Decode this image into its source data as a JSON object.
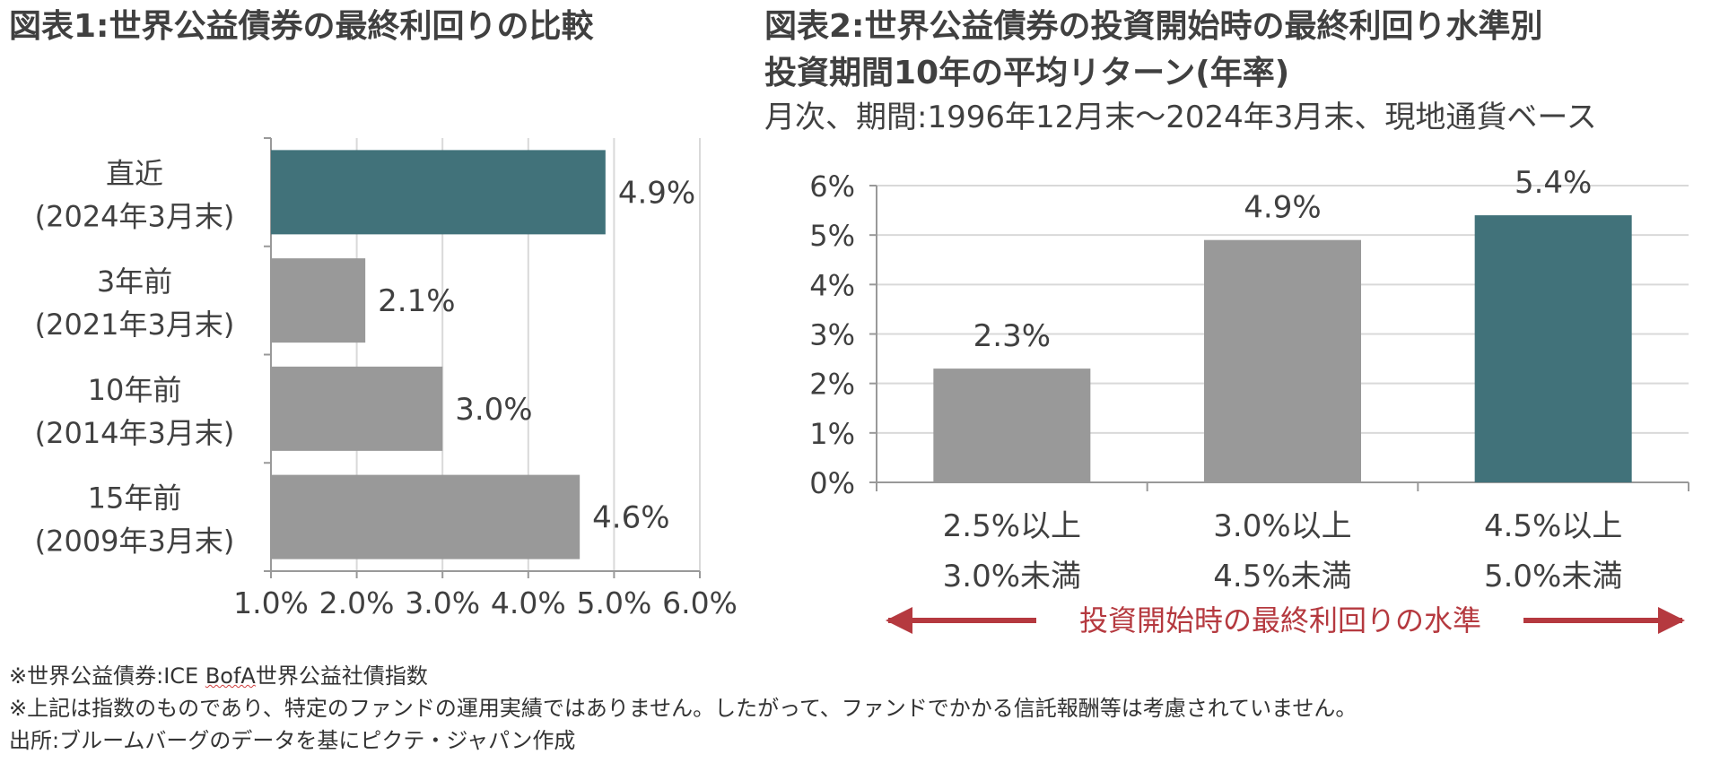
{
  "chart1": {
    "title": "図表1:世界公益債券の最終利回りの比較",
    "chart_data": {
      "type": "bar",
      "orientation": "horizontal",
      "categories": [
        [
          "直近",
          "(2024年3月末)"
        ],
        [
          "3年前",
          "(2021年3月末)"
        ],
        [
          "10年前",
          "(2014年3月末)"
        ],
        [
          "15年前",
          "(2009年3月末)"
        ]
      ],
      "values": [
        4.9,
        2.1,
        3.0,
        4.6
      ],
      "data_labels": [
        "4.9%",
        "2.1%",
        "3.0%",
        "4.6%"
      ],
      "xlim": [
        1.0,
        6.0
      ],
      "xticks": [
        "1.0%",
        "2.0%",
        "3.0%",
        "4.0%",
        "5.0%",
        "6.0%"
      ],
      "grid": "vertical",
      "colors": [
        "#41727a",
        "#999999",
        "#999999",
        "#999999"
      ]
    }
  },
  "chart2": {
    "title_line1": "図表2:世界公益債券の投資開始時の最終利回り水準別",
    "title_line2": "投資期間10年の平均リターン(年率)",
    "subtitle": "月次、期間:1996年12月末〜2024年3月末、現地通貨ベース",
    "chart_data": {
      "type": "bar",
      "categories": [
        [
          "2.5%以上",
          "3.0%未満"
        ],
        [
          "3.0%以上",
          "4.5%未満"
        ],
        [
          "4.5%以上",
          "5.0%未満"
        ]
      ],
      "values": [
        2.3,
        4.9,
        5.4
      ],
      "data_labels": [
        "2.3%",
        "4.9%",
        "5.4%"
      ],
      "ylim": [
        0,
        6
      ],
      "yticks": [
        "0%",
        "1%",
        "2%",
        "3%",
        "4%",
        "5%",
        "6%"
      ],
      "grid": "horizontal",
      "colors": [
        "#999999",
        "#999999",
        "#41727a"
      ],
      "xaxis_annotation": "投資開始時の最終利回りの水準",
      "annotation_color": "#b5393f"
    }
  },
  "notes": {
    "line1_prefix": "※世界公益債券:ICE ",
    "line1_word": "BofA",
    "line1_suffix": "世界公益社債指数",
    "line2": "※上記は指数のものであり、特定のファンドの運用実績ではありません。したがって、ファンドでかかる信託報酬等は考慮されていません。",
    "line3": "出所:ブルームバーグのデータを基にピクテ・ジャパン作成"
  }
}
